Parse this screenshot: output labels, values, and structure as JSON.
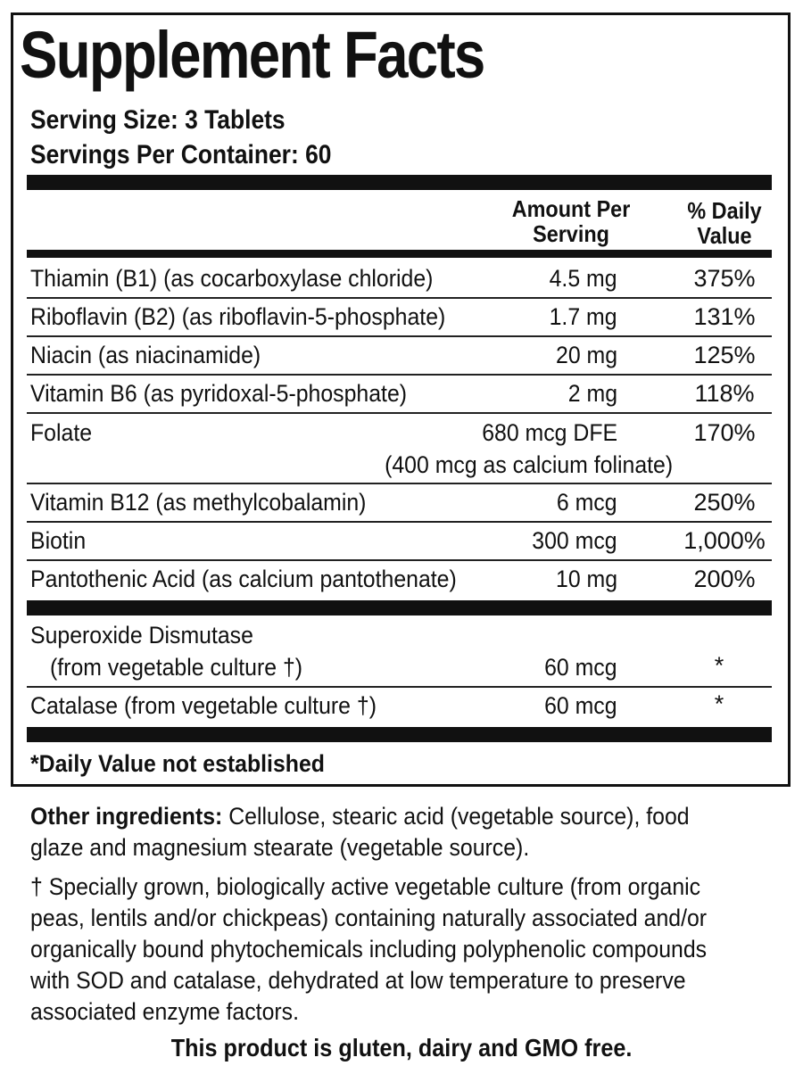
{
  "title": "Supplement Facts",
  "serving_size": "Serving Size: 3 Tablets",
  "servings_per_container": "Servings Per Container: 60",
  "columns": {
    "amount_line1": "Amount Per",
    "amount_line2": "Serving",
    "dv_line1": "% Daily",
    "dv_line2": "Value"
  },
  "nutrients": [
    {
      "name": "Thiamin (B1) (as cocarboxylase chloride)",
      "amount": "4.5 mg",
      "dv": "375%"
    },
    {
      "name": "Riboflavin (B2) (as riboflavin-5-phosphate)",
      "amount": "1.7 mg",
      "dv": "131%"
    },
    {
      "name": "Niacin (as niacinamide)",
      "amount": "20 mg",
      "dv": "125%"
    },
    {
      "name": "Vitamin B6 (as pyridoxal-5-phosphate)",
      "amount": "2 mg",
      "dv": "118%"
    },
    {
      "name": "Folate",
      "amount": "680 mcg DFE",
      "dv": "170%",
      "amount_note": "(400 mcg as calcium folinate)"
    },
    {
      "name": "Vitamin B12 (as methylcobalamin)",
      "amount": "6 mcg",
      "dv": "250%"
    },
    {
      "name": "Biotin",
      "amount": "300 mcg",
      "dv": "1,000%"
    },
    {
      "name": "Pantothenic Acid (as calcium pantothenate)",
      "amount": "10 mg",
      "dv": "200%"
    }
  ],
  "enzymes": [
    {
      "name_line1": "Superoxide Dismutase",
      "name_line2": "(from vegetable culture †)",
      "amount": "60 mcg",
      "dv": "*"
    },
    {
      "name_line1": "Catalase (from vegetable culture †)",
      "amount": "60 mcg",
      "dv": "*"
    }
  ],
  "daily_value_note": "*Daily Value not established",
  "other_ingredients_label": "Other ingredients:",
  "other_ingredients_text": " Cellulose, stearic acid (vegetable source), food glaze and magnesium stearate (vegetable source).",
  "dagger_note": "† Specially grown, biologically active vegetable culture (from organic peas, lentils and/or chickpeas) containing naturally associated and/or organically bound phytochemicals including polyphenolic compounds with SOD and catalase, dehydrated at low temperature to preserve associated enzyme factors.",
  "free_from": "This product is gluten, dairy and GMO free."
}
